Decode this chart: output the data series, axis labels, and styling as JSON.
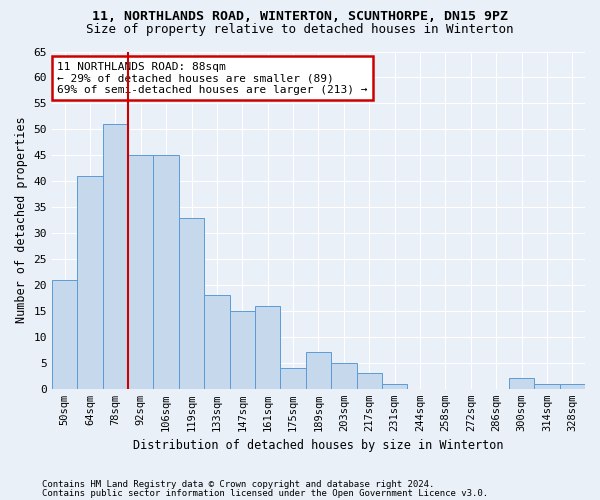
{
  "title": "11, NORTHLANDS ROAD, WINTERTON, SCUNTHORPE, DN15 9PZ",
  "subtitle": "Size of property relative to detached houses in Winterton",
  "xlabel": "Distribution of detached houses by size in Winterton",
  "ylabel": "Number of detached properties",
  "categories": [
    "50sqm",
    "64sqm",
    "78sqm",
    "92sqm",
    "106sqm",
    "119sqm",
    "133sqm",
    "147sqm",
    "161sqm",
    "175sqm",
    "189sqm",
    "203sqm",
    "217sqm",
    "231sqm",
    "244sqm",
    "258sqm",
    "272sqm",
    "286sqm",
    "300sqm",
    "314sqm",
    "328sqm"
  ],
  "values": [
    21,
    41,
    51,
    45,
    45,
    33,
    18,
    15,
    16,
    4,
    7,
    5,
    3,
    1,
    0,
    0,
    0,
    0,
    2,
    1,
    1
  ],
  "bar_color": "#c6d9ec",
  "bar_edge_color": "#5b9bd5",
  "red_line_color": "#cc0000",
  "annotation_line0": "11 NORTHLANDS ROAD: 88sqm",
  "annotation_line1": "← 29% of detached houses are smaller (89)",
  "annotation_line2": "69% of semi-detached houses are larger (213) →",
  "annotation_box_color": "#ffffff",
  "annotation_box_edge": "#cc0000",
  "ylim": [
    0,
    65
  ],
  "yticks": [
    0,
    5,
    10,
    15,
    20,
    25,
    30,
    35,
    40,
    45,
    50,
    55,
    60,
    65
  ],
  "bg_color": "#eaf0f8",
  "plot_bg_color": "#eaf0f8",
  "grid_color": "#ffffff",
  "footer1": "Contains HM Land Registry data © Crown copyright and database right 2024.",
  "footer2": "Contains public sector information licensed under the Open Government Licence v3.0."
}
